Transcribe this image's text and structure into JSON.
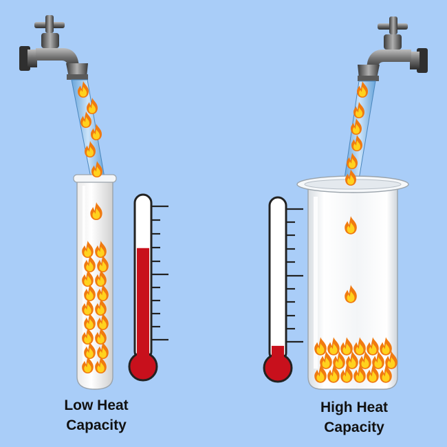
{
  "panels": [
    {
      "id": "low",
      "caption_line1": "Low Heat",
      "caption_line2": "Capacity",
      "thermometer_fill_fraction": 0.73,
      "container": "test-tube"
    },
    {
      "id": "high",
      "caption_line1": "High Heat",
      "caption_line2": "Capacity",
      "thermometer_fill_fraction": 0.1,
      "container": "beaker"
    }
  ],
  "colors": {
    "background": "#a9cdf8",
    "mercury": "#c8101c",
    "flame_outer": "#f07a10",
    "flame_inner": "#ffd21e",
    "faucet_metal": "#6a6a6a",
    "water": "#7ab8e8"
  },
  "icons": [
    "faucet-icon",
    "flame-icon",
    "thermometer-icon",
    "test-tube-icon",
    "beaker-icon"
  ]
}
